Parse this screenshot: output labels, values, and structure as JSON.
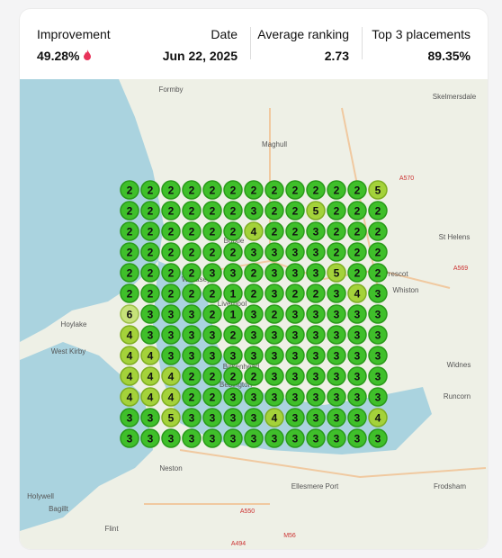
{
  "stats": [
    {
      "label": "Improvement",
      "value": "49.28%"
    },
    {
      "label": "Date",
      "value": "Jun 22, 2025"
    },
    {
      "label": "Average ranking",
      "value": "2.73"
    },
    {
      "label": "Top 3 placements",
      "value": "89.35%"
    }
  ],
  "map": {
    "labels": [
      "Formby",
      "Skelmersdale",
      "Maghull",
      "St Helens",
      "Bootle",
      "Wallasey",
      "Liverpool",
      "Prescot",
      "Whiston",
      "Hoylake",
      "West Kirby",
      "Widnes",
      "Runcorn",
      "Birkenhead",
      "Bebington",
      "Neston",
      "Ellesmere Port",
      "Frodsham",
      "Holywell",
      "Bagillt",
      "Flint"
    ],
    "roads": [
      "A570",
      "A569",
      "A550",
      "M56",
      "A494"
    ]
  },
  "grid": [
    [
      2,
      2,
      2,
      2,
      2,
      2,
      2,
      2,
      2,
      2,
      2,
      2,
      5
    ],
    [
      2,
      2,
      2,
      2,
      2,
      2,
      3,
      2,
      2,
      5,
      2,
      2,
      2
    ],
    [
      2,
      2,
      2,
      2,
      2,
      2,
      4,
      2,
      2,
      3,
      2,
      2,
      2
    ],
    [
      2,
      2,
      2,
      2,
      2,
      2,
      3,
      3,
      3,
      3,
      2,
      2,
      2
    ],
    [
      2,
      2,
      2,
      2,
      3,
      3,
      2,
      3,
      3,
      3,
      5,
      2,
      2
    ],
    [
      2,
      2,
      2,
      2,
      2,
      1,
      2,
      3,
      2,
      2,
      3,
      4,
      3
    ],
    [
      6,
      3,
      3,
      3,
      2,
      1,
      3,
      2,
      3,
      3,
      3,
      3,
      3
    ],
    [
      4,
      3,
      3,
      3,
      3,
      2,
      3,
      3,
      3,
      3,
      3,
      3,
      3
    ],
    [
      4,
      4,
      3,
      3,
      3,
      3,
      3,
      3,
      3,
      3,
      3,
      3,
      3
    ],
    [
      4,
      4,
      4,
      2,
      2,
      2,
      2,
      3,
      3,
      3,
      3,
      3,
      3
    ],
    [
      4,
      4,
      4,
      2,
      2,
      3,
      3,
      3,
      3,
      3,
      3,
      3,
      3
    ],
    [
      3,
      3,
      5,
      3,
      3,
      3,
      3,
      4,
      3,
      3,
      3,
      3,
      4
    ],
    [
      3,
      3,
      3,
      3,
      3,
      3,
      3,
      3,
      3,
      3,
      3,
      3,
      3
    ]
  ]
}
